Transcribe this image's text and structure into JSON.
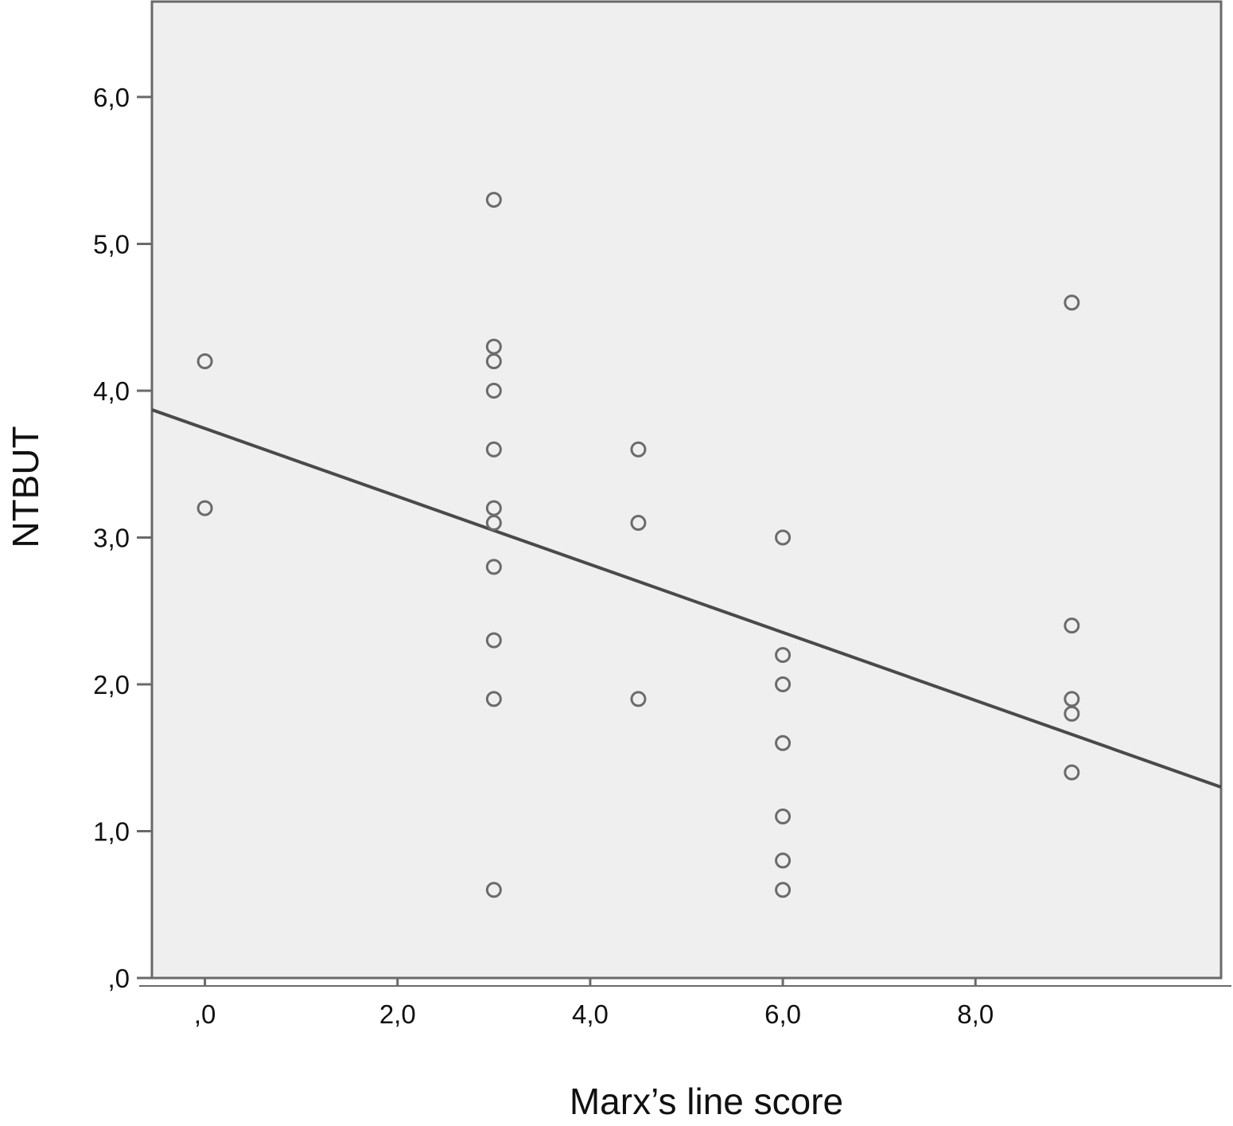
{
  "chart_data": {
    "type": "scatter",
    "title": "",
    "xlabel": "Marx’s line score",
    "ylabel": "NTBUT",
    "xlim": [
      -0.55,
      10.55
    ],
    "ylim": [
      0,
      6.65
    ],
    "x_ticks": [
      0,
      2,
      4,
      6,
      8
    ],
    "x_tick_labels": [
      ",0",
      "2,0",
      "4,0",
      "6,0",
      "8,0"
    ],
    "y_ticks": [
      0,
      1,
      2,
      3,
      4,
      5,
      6
    ],
    "y_tick_labels": [
      ",0",
      "1,0",
      "2,0",
      "3,0",
      "4,0",
      "5,0",
      "6,0"
    ],
    "grid": false,
    "legend": "none",
    "background_color": "#efefef",
    "marker_color": "#6b6b6b",
    "line_color": "#4a4a4a",
    "series": [
      {
        "points": [
          {
            "x": 0,
            "y": 4.2
          },
          {
            "x": 0,
            "y": 3.2
          },
          {
            "x": 3,
            "y": 5.3
          },
          {
            "x": 3,
            "y": 4.3
          },
          {
            "x": 3,
            "y": 4.2
          },
          {
            "x": 3,
            "y": 4.0
          },
          {
            "x": 3,
            "y": 3.6
          },
          {
            "x": 3,
            "y": 3.2
          },
          {
            "x": 3,
            "y": 3.1
          },
          {
            "x": 3,
            "y": 2.8
          },
          {
            "x": 3,
            "y": 2.3
          },
          {
            "x": 3,
            "y": 1.9
          },
          {
            "x": 3,
            "y": 0.6
          },
          {
            "x": 4.5,
            "y": 3.6
          },
          {
            "x": 4.5,
            "y": 3.1
          },
          {
            "x": 4.5,
            "y": 1.9
          },
          {
            "x": 6,
            "y": 3.0
          },
          {
            "x": 6,
            "y": 2.2
          },
          {
            "x": 6,
            "y": 2.0
          },
          {
            "x": 6,
            "y": 1.6
          },
          {
            "x": 6,
            "y": 1.1
          },
          {
            "x": 6,
            "y": 0.8
          },
          {
            "x": 6,
            "y": 0.6
          },
          {
            "x": 9,
            "y": 4.6
          },
          {
            "x": 9,
            "y": 2.4
          },
          {
            "x": 9,
            "y": 1.9
          },
          {
            "x": 9,
            "y": 1.8
          },
          {
            "x": 9,
            "y": 1.4
          }
        ]
      }
    ],
    "fit_line": {
      "x1": -0.55,
      "y1": 3.87,
      "x2": 10.55,
      "y2": 1.3
    }
  }
}
